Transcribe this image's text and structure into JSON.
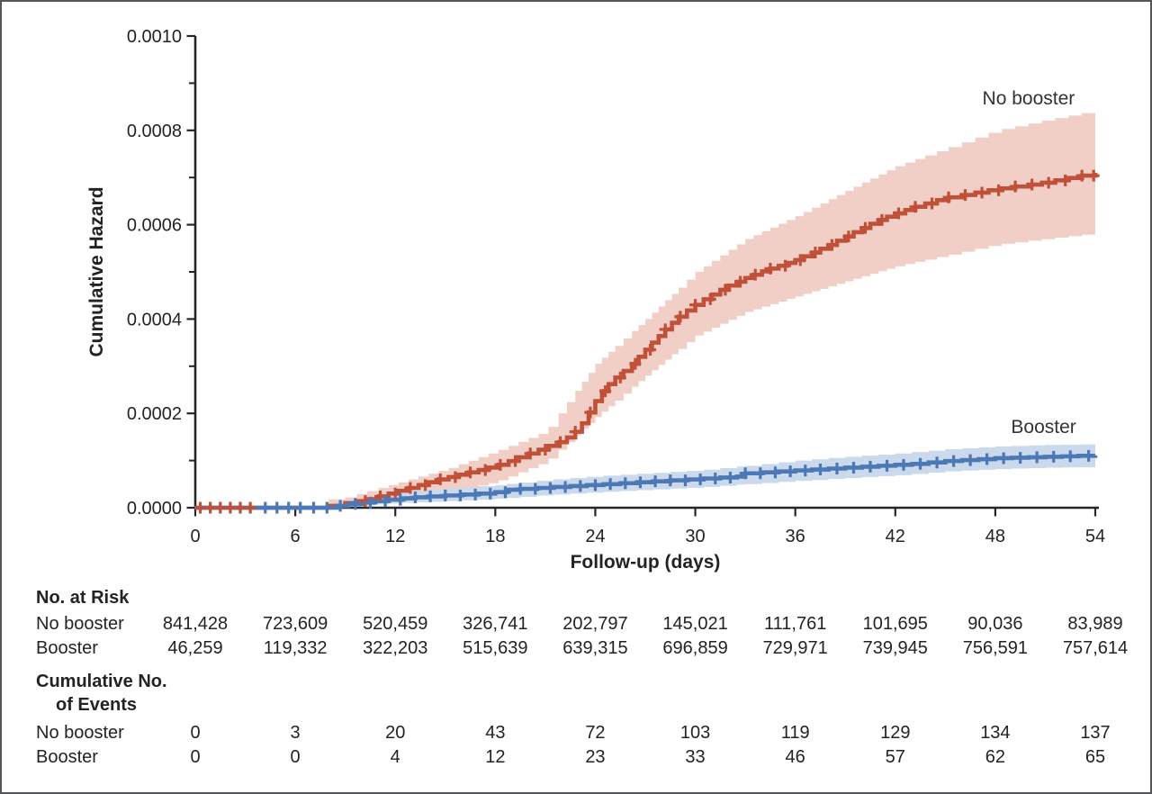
{
  "figure": {
    "background": "#ffffff",
    "border_color": "#55565a",
    "text_color": "#232323",
    "axis_color": "#262626"
  },
  "chart_data": {
    "type": "line",
    "subtype": "cumulative-hazard-step-curves-with-confidence-bands",
    "title": "",
    "xlabel": "Follow-up (days)",
    "ylabel": "Cumulative Hazard",
    "xlim": [
      0,
      54
    ],
    "ylim": [
      0,
      0.001
    ],
    "grid": false,
    "legend_position": "inline-labels",
    "xticks": [
      0,
      6,
      12,
      18,
      24,
      30,
      36,
      42,
      48,
      54
    ],
    "yticks_major": [
      0,
      0.0002,
      0.0004,
      0.0006,
      0.0008,
      0.001
    ],
    "ytick_labels": [
      "0.0000",
      "0.0002",
      "0.0004",
      "0.0006",
      "0.0008",
      "0.0010"
    ],
    "yticks_minor": [
      0.0001,
      0.0003,
      0.0005,
      0.0007,
      0.0009
    ],
    "series": [
      {
        "name": "No booster",
        "color": "#c05038",
        "band_color": "#f1cfc7",
        "label_anchor": {
          "day": 50.0,
          "value": 0.000868
        },
        "points": [
          [
            0,
            0
          ],
          [
            8,
            4e-06
          ],
          [
            9,
            1e-05
          ],
          [
            9.7,
            1.4e-05
          ],
          [
            10.3,
            1.8e-05
          ],
          [
            11,
            2.4e-05
          ],
          [
            11.6,
            3e-05
          ],
          [
            12.2,
            3.6e-05
          ],
          [
            12.8,
            4.2e-05
          ],
          [
            13.4,
            4.8e-05
          ],
          [
            14,
            5.4e-05
          ],
          [
            14.6,
            6e-05
          ],
          [
            15.2,
            6.5e-05
          ],
          [
            15.8,
            7e-05
          ],
          [
            16.4,
            7.5e-05
          ],
          [
            17,
            8e-05
          ],
          [
            17.6,
            8.5e-05
          ],
          [
            18.2,
            9.1e-05
          ],
          [
            18.8,
            9.9e-05
          ],
          [
            19.4,
            0.000107
          ],
          [
            20,
            0.000115
          ],
          [
            20.6,
            0.000123
          ],
          [
            21.2,
            0.000131
          ],
          [
            21.8,
            0.000139
          ],
          [
            22.3,
            0.000149
          ],
          [
            22.8,
            0.000161
          ],
          [
            23.2,
            0.000179
          ],
          [
            23.6,
            0.000202
          ],
          [
            24,
            0.000226
          ],
          [
            24.4,
            0.000247
          ],
          [
            24.8,
            0.000262
          ],
          [
            25.2,
            0.000276
          ],
          [
            25.7,
            0.00029
          ],
          [
            26.2,
            0.000305
          ],
          [
            26.6,
            0.00032
          ],
          [
            27,
            0.000335
          ],
          [
            27.4,
            0.00035
          ],
          [
            27.8,
            0.000364
          ],
          [
            28.2,
            0.000378
          ],
          [
            28.6,
            0.000392
          ],
          [
            29,
            0.000405
          ],
          [
            29.5,
            0.000418
          ],
          [
            30,
            0.00043
          ],
          [
            30.5,
            0.000442
          ],
          [
            31,
            0.000452
          ],
          [
            31.5,
            0.000462
          ],
          [
            32,
            0.000471
          ],
          [
            32.5,
            0.000479
          ],
          [
            33,
            0.000487
          ],
          [
            33.5,
            0.000494
          ],
          [
            34,
            0.000501
          ],
          [
            34.5,
            0.000507
          ],
          [
            35,
            0.000513
          ],
          [
            35.5,
            0.000519
          ],
          [
            36,
            0.000525
          ],
          [
            36.5,
            0.000533
          ],
          [
            37,
            0.000541
          ],
          [
            37.5,
            0.000549
          ],
          [
            38,
            0.000557
          ],
          [
            38.5,
            0.000566
          ],
          [
            39,
            0.000575
          ],
          [
            39.5,
            0.000584
          ],
          [
            40,
            0.000593
          ],
          [
            40.5,
            0.000602
          ],
          [
            41,
            0.00061
          ],
          [
            41.5,
            0.000617
          ],
          [
            42,
            0.000624
          ],
          [
            42.6,
            0.000631
          ],
          [
            43.2,
            0.000638
          ],
          [
            43.8,
            0.000645
          ],
          [
            44.5,
            0.000652
          ],
          [
            45.2,
            0.000658
          ],
          [
            46,
            0.000663
          ],
          [
            46.8,
            0.000668
          ],
          [
            47.6,
            0.000673
          ],
          [
            48.4,
            0.000677
          ],
          [
            49.2,
            0.000681
          ],
          [
            50,
            0.000685
          ],
          [
            50.8,
            0.000689
          ],
          [
            51.6,
            0.000694
          ],
          [
            52.4,
            0.000699
          ],
          [
            53.2,
            0.000704
          ],
          [
            54,
            0.00071
          ]
        ],
        "band": [
          [
            0,
            0,
            0
          ],
          [
            5,
            0,
            0
          ],
          [
            6,
            1e-06,
            1e-05
          ],
          [
            9,
            4e-06,
            2.2e-05
          ],
          [
            12,
            1.6e-05,
            5.2e-05
          ],
          [
            15,
            3.2e-05,
            8.2e-05
          ],
          [
            18,
            5.5e-05,
            0.00012
          ],
          [
            21,
            9.8e-05,
            0.000162
          ],
          [
            24,
            0.000192,
            0.000305
          ],
          [
            27,
            0.00028,
            0.0004
          ],
          [
            30,
            0.000365,
            0.0005
          ],
          [
            33,
            0.000415,
            0.00057
          ],
          [
            36,
            0.000448,
            0.000618
          ],
          [
            39,
            0.00048,
            0.000672
          ],
          [
            42,
            0.000512,
            0.000724
          ],
          [
            45,
            0.000535,
            0.000762
          ],
          [
            48,
            0.000558,
            0.0008
          ],
          [
            51,
            0.00057,
            0.000822
          ],
          [
            54,
            0.000582,
            0.000842
          ]
        ],
        "censor_days": [
          0.3,
          0.9,
          1.5,
          2.1,
          2.7,
          3.3,
          10.2,
          11.1,
          12,
          12.9,
          13.8,
          14.7,
          15.6,
          16.5,
          17.4,
          18.3,
          19.2,
          20.1,
          21,
          21.9,
          22.8,
          23.7,
          24.6,
          25.5,
          26.4,
          27.3,
          28.2,
          29.1,
          30,
          30.9,
          31.8,
          32.7,
          33.6,
          34.5,
          35.4,
          36.3,
          37.2,
          38.2,
          39.2,
          40.2,
          41.2,
          42.2,
          43.2,
          44.2,
          45.2,
          46.2,
          47.2,
          48.2,
          49.2,
          50.2,
          51.2,
          52.2,
          53.2,
          53.9
        ]
      },
      {
        "name": "Booster",
        "color": "#4c79b5",
        "band_color": "#cbd9ec",
        "label_anchor": {
          "day": 50.9,
          "value": 0.000172
        },
        "points": [
          [
            0,
            0
          ],
          [
            8.5,
            4e-06
          ],
          [
            9.2,
            8e-06
          ],
          [
            10,
            1.1e-05
          ],
          [
            10.8,
            1.4e-05
          ],
          [
            11.6,
            1.7e-05
          ],
          [
            12.4,
            2e-05
          ],
          [
            13.2,
            2.2e-05
          ],
          [
            14,
            2.4e-05
          ],
          [
            15,
            2.6e-05
          ],
          [
            16,
            2.8e-05
          ],
          [
            17,
            3e-05
          ],
          [
            18,
            3.3e-05
          ],
          [
            18.7,
            3.8e-05
          ],
          [
            19.5,
            4e-05
          ],
          [
            20.5,
            4.2e-05
          ],
          [
            21.5,
            4.4e-05
          ],
          [
            22.5,
            4.6e-05
          ],
          [
            23.5,
            4.8e-05
          ],
          [
            24.5,
            5e-05
          ],
          [
            25.5,
            5.2e-05
          ],
          [
            26.5,
            5.4e-05
          ],
          [
            27.5,
            5.6e-05
          ],
          [
            28.5,
            5.8e-05
          ],
          [
            29.5,
            6e-05
          ],
          [
            30.5,
            6.2e-05
          ],
          [
            31.5,
            6.4e-05
          ],
          [
            32.5,
            6.6e-05
          ],
          [
            33,
            7.3e-05
          ],
          [
            34,
            7.5e-05
          ],
          [
            35,
            7.7e-05
          ],
          [
            36,
            7.9e-05
          ],
          [
            37,
            8.1e-05
          ],
          [
            38,
            8.3e-05
          ],
          [
            39,
            8.5e-05
          ],
          [
            40,
            8.7e-05
          ],
          [
            41,
            8.9e-05
          ],
          [
            42,
            9.1e-05
          ],
          [
            43,
            9.3e-05
          ],
          [
            44,
            9.6e-05
          ],
          [
            45,
            9.9e-05
          ],
          [
            46,
            0.000101
          ],
          [
            47,
            0.000103
          ],
          [
            48,
            0.000105
          ],
          [
            49,
            0.000106
          ],
          [
            50,
            0.000107
          ],
          [
            51,
            0.000108
          ],
          [
            52,
            0.000109
          ],
          [
            53,
            0.00011
          ],
          [
            54,
            0.000111
          ]
        ],
        "band": [
          [
            0,
            0,
            0
          ],
          [
            8,
            0,
            0
          ],
          [
            9,
            2e-06,
            1.8e-05
          ],
          [
            12,
            1e-05,
            3.4e-05
          ],
          [
            15,
            1.4e-05,
            4.1e-05
          ],
          [
            18,
            1.9e-05,
            4.8e-05
          ],
          [
            21,
            2.7e-05,
            5.9e-05
          ],
          [
            24,
            3.3e-05,
            6.7e-05
          ],
          [
            27,
            3.8e-05,
            7.3e-05
          ],
          [
            30,
            4.3e-05,
            7.9e-05
          ],
          [
            33,
            5e-05,
            8.9e-05
          ],
          [
            36,
            5.7e-05,
            0.0001
          ],
          [
            39,
            6.3e-05,
            0.000108
          ],
          [
            42,
            6.9e-05,
            0.000115
          ],
          [
            45,
            7.7e-05,
            0.000124
          ],
          [
            48,
            8.2e-05,
            0.00013
          ],
          [
            51,
            8.5e-05,
            0.000133
          ],
          [
            54,
            8.6e-05,
            0.000135
          ]
        ],
        "censor_days": [
          4.2,
          4.9,
          5.6,
          6.3,
          7.1,
          7.9,
          8.7,
          9.6,
          10.5,
          11.4,
          12.3,
          13.2,
          14.1,
          15,
          15.9,
          16.8,
          17.7,
          18.6,
          19.5,
          20.4,
          21.3,
          22.2,
          23.1,
          24,
          24.9,
          25.8,
          26.7,
          27.6,
          28.5,
          29.4,
          30.3,
          31.2,
          32.1,
          33,
          33.9,
          34.8,
          35.7,
          36.6,
          37.5,
          38.5,
          39.5,
          40.5,
          41.5,
          42.5,
          43.5,
          44.5,
          45.5,
          46.5,
          47.5,
          48.5,
          49.5,
          50.5,
          51.5,
          52.5,
          53.6
        ]
      }
    ]
  },
  "risk_table": {
    "at_risk_header": "No. at Risk",
    "events_header_line1": "Cumulative No.",
    "events_header_line2": "of Events",
    "at_risk_rows": [
      {
        "label": "No booster",
        "values": [
          "841,428",
          "723,609",
          "520,459",
          "326,741",
          "202,797",
          "145,021",
          "111,761",
          "101,695",
          "90,036",
          "83,989"
        ]
      },
      {
        "label": "Booster",
        "values": [
          "46,259",
          "119,332",
          "322,203",
          "515,639",
          "639,315",
          "696,859",
          "729,971",
          "739,945",
          "756,591",
          "757,614"
        ]
      }
    ],
    "events_rows": [
      {
        "label": "No booster",
        "values": [
          "0",
          "3",
          "20",
          "43",
          "72",
          "103",
          "119",
          "129",
          "134",
          "137"
        ]
      },
      {
        "label": "Booster",
        "values": [
          "0",
          "0",
          "4",
          "12",
          "23",
          "33",
          "46",
          "57",
          "62",
          "65"
        ]
      }
    ]
  }
}
